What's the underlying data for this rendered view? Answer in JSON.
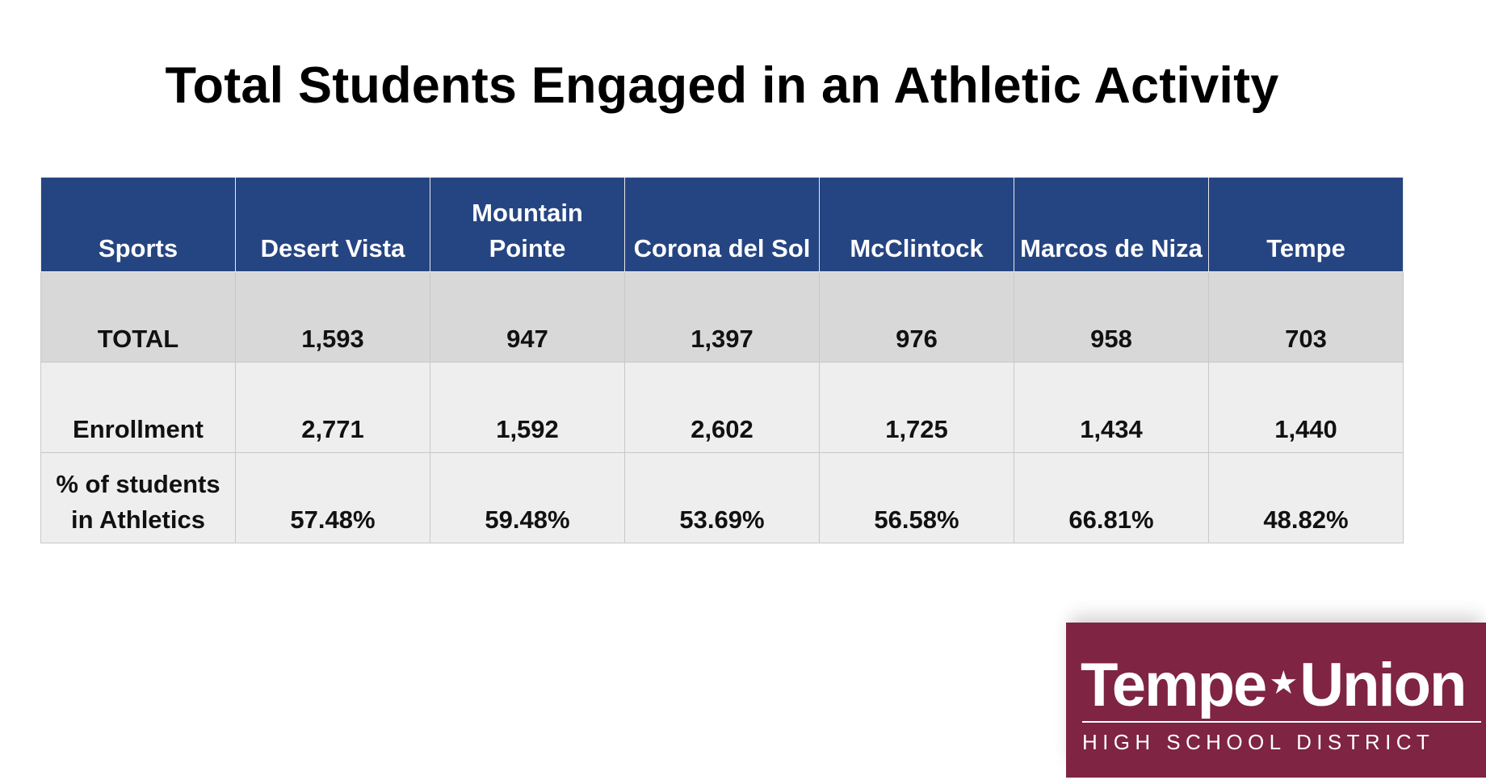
{
  "title": "Total Students Engaged in an Athletic Activity",
  "table": {
    "headers": [
      "Sports",
      "Desert Vista",
      "Mountain Pointe",
      "Corona del Sol",
      "McClintock",
      "Marcos de Niza",
      "Tempe"
    ],
    "rows": [
      {
        "label": "TOTAL",
        "values": [
          "1,593",
          "947",
          "1,397",
          "976",
          "958",
          "703"
        ]
      },
      {
        "label": "Enrollment",
        "values": [
          "2,771",
          "1,592",
          "2,602",
          "1,725",
          "1,434",
          "1,440"
        ]
      },
      {
        "label": "% of students in Athletics",
        "values": [
          "57.48%",
          "59.48%",
          "53.69%",
          "56.58%",
          "66.81%",
          "48.82%"
        ]
      }
    ]
  },
  "logo": {
    "name_left": "Tempe",
    "star": "★",
    "name_right": "Union",
    "subtitle": "HIGH SCHOOL DISTRICT"
  },
  "colors": {
    "header_bg": "#254582",
    "total_row_bg": "#d8d8d8",
    "row_bg": "#eeeeee",
    "logo_bg": "#7f2443"
  }
}
